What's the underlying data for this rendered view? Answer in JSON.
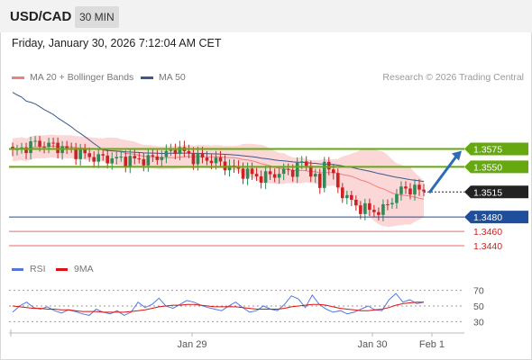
{
  "header": {
    "symbol": "USD/CAD",
    "timeframe": "30 MIN",
    "datetime": "Friday, January 30, 2026 7:12:04 AM CET"
  },
  "legend": {
    "ma20_label": "MA 20 + Bollinger Bands",
    "ma50_label": "MA 50",
    "copyright": "Research © 2026 Trading Central",
    "rsi_label": "RSI",
    "rsi_ma_label": "9MA"
  },
  "colors": {
    "bullish": "#2e8b57",
    "bearish": "#cc2222",
    "bollinger_fill": "#fbd7d7",
    "ma20": "#f08080",
    "ma50": "#3a5a8c",
    "resistance": "#66a80f",
    "support_blue": "#1f4e9a",
    "support_red": "#e36b6b",
    "current_price": "#222222",
    "rsi": "#5577dd",
    "rsi_ma": "#dd1111",
    "arrow": "#2d6cb5"
  },
  "chart_data": [
    {
      "type": "candlestick",
      "title": "USD/CAD",
      "timeframe": "30 MIN",
      "x_tick_labels": [
        "Jan 29",
        "Jan 30",
        "Feb 1"
      ],
      "ylim": [
        1.3432,
        1.3608
      ],
      "grid": false,
      "legend_placement": "top-left",
      "series": [
        {
          "name": "MA 20 + Bollinger Bands"
        },
        {
          "name": "MA 50"
        }
      ],
      "horizontal_levels": [
        {
          "value": 1.3575,
          "label": "1.3575",
          "kind": "resistance"
        },
        {
          "value": 1.355,
          "label": "1.3550",
          "kind": "resistance"
        },
        {
          "value": 1.3515,
          "label": "1.3515",
          "kind": "current"
        },
        {
          "value": 1.348,
          "label": "1.3480",
          "kind": "support"
        },
        {
          "value": 1.346,
          "label": "1.3460",
          "kind": "support"
        },
        {
          "value": 1.344,
          "label": "1.3440",
          "kind": "support"
        }
      ],
      "projection_arrow": {
        "from": 1.3515,
        "to": 1.3575
      }
    },
    {
      "type": "line",
      "title": "RSI",
      "ylim": [
        20,
        80
      ],
      "y_ticks": [
        70,
        50,
        30
      ],
      "series": [
        {
          "name": "RSI",
          "values": [
            42,
            50,
            55,
            48,
            46,
            49,
            44,
            41,
            45,
            43,
            40,
            38,
            46,
            42,
            40,
            44,
            38,
            42,
            55,
            48,
            52,
            60,
            50,
            47,
            52,
            57,
            55,
            51,
            48,
            46,
            44,
            50,
            55,
            48,
            42,
            44,
            50,
            46,
            44,
            52,
            63,
            59,
            48,
            64,
            52,
            46,
            42,
            44,
            40,
            42,
            46,
            50,
            45,
            44,
            58,
            66,
            55,
            58,
            53,
            55
          ]
        },
        {
          "name": "9MA",
          "values": [
            50,
            49,
            48,
            47,
            47,
            46,
            46,
            45,
            45,
            44,
            43,
            43,
            43,
            42,
            42,
            42,
            42,
            43,
            44,
            45,
            47,
            49,
            50,
            51,
            51,
            52,
            52,
            51,
            50,
            49,
            49,
            49,
            49,
            48,
            47,
            46,
            46,
            46,
            46,
            47,
            49,
            50,
            51,
            52,
            52,
            51,
            49,
            47,
            46,
            45,
            44,
            44,
            45,
            46,
            48,
            51,
            53,
            54,
            55,
            55
          ]
        }
      ]
    }
  ]
}
